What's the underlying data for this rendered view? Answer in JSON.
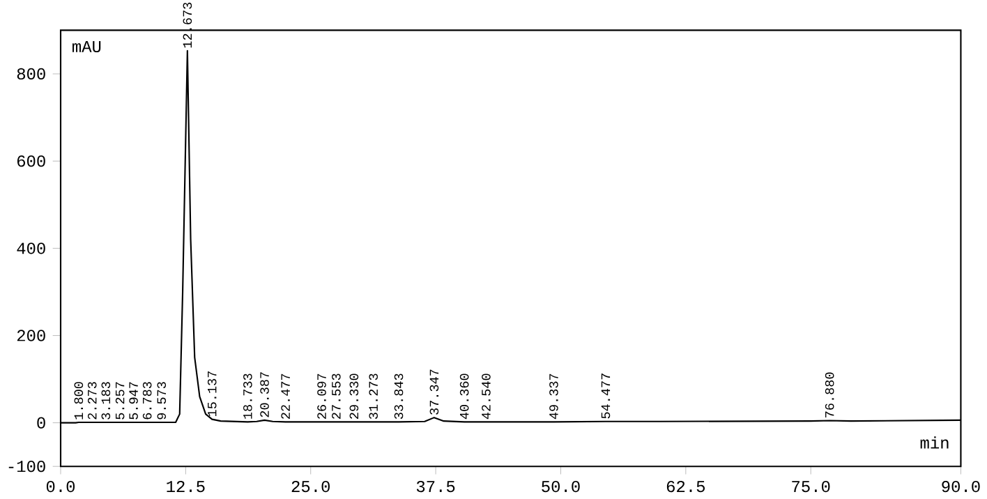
{
  "chart_data": {
    "type": "line",
    "xlabel": "min",
    "ylabel": "mAU",
    "color": "#000000",
    "x": [
      0,
      1.5,
      1.8,
      2.3,
      3.2,
      5.3,
      6.0,
      6.8,
      9.6,
      11.5,
      11.9,
      12.2,
      12.673,
      13.0,
      13.4,
      13.9,
      14.5,
      15.137,
      16.0,
      18.7,
      19.6,
      20.387,
      21.2,
      22.477,
      26.1,
      33.8,
      36.4,
      37.347,
      38.3,
      40.36,
      42.54,
      49.3,
      54.5,
      60.0,
      75.0,
      76.88,
      79.0,
      90.0
    ],
    "values": [
      0,
      0,
      1,
      1,
      1,
      1,
      1,
      1,
      1,
      1,
      20,
      300,
      853,
      420,
      150,
      60,
      20,
      8,
      4,
      2,
      3,
      6,
      3,
      2,
      2,
      2,
      3,
      12,
      4,
      2,
      2,
      2,
      3,
      3,
      4,
      5,
      4,
      6
    ],
    "xlim": [
      0,
      90
    ],
    "ylim": [
      -100,
      900
    ],
    "xticks": [
      {
        "value": 0,
        "label": "0.0"
      },
      12.5,
      {
        "value": 25,
        "label": "25.0"
      },
      37.5,
      {
        "value": 50,
        "label": "50.0"
      },
      62.5,
      {
        "value": 75,
        "label": "75.0"
      },
      {
        "value": 90,
        "label": "90.0"
      }
    ],
    "yticks": [
      -100,
      0,
      200,
      400,
      600,
      800
    ],
    "grid": false,
    "annotations": [
      {
        "text": "1.800",
        "x": 1.8,
        "y": 1
      },
      {
        "text": "2.273",
        "x": 2.3,
        "y": 1
      },
      {
        "text": "3.183",
        "x": 3.2,
        "y": 1
      },
      {
        "text": "5.257",
        "x": 5.3,
        "y": 1
      },
      {
        "text": "5.947",
        "x": 6.0,
        "y": 1
      },
      {
        "text": "6.783",
        "x": 6.8,
        "y": 1
      },
      {
        "text": "9.573",
        "x": 9.6,
        "y": 1
      },
      {
        "text": "12.673",
        "x": 12.673,
        "y": 853
      },
      {
        "text": "15.137",
        "x": 15.137,
        "y": 8
      },
      {
        "text": "18.733",
        "x": 18.7,
        "y": 2
      },
      {
        "text": "20.387",
        "x": 20.387,
        "y": 6
      },
      {
        "text": "22.477",
        "x": 22.477,
        "y": 2
      },
      {
        "text": "26.097",
        "x": 26.1,
        "y": 2
      },
      {
        "text": "27.553",
        "x": 27.55,
        "y": 2
      },
      {
        "text": "29.330",
        "x": 29.33,
        "y": 2
      },
      {
        "text": "31.273",
        "x": 31.27,
        "y": 2
      },
      {
        "text": "33.843",
        "x": 33.8,
        "y": 2
      },
      {
        "text": "37.347",
        "x": 37.347,
        "y": 12
      },
      {
        "text": "40.360",
        "x": 40.36,
        "y": 2
      },
      {
        "text": "42.540",
        "x": 42.54,
        "y": 2
      },
      {
        "text": "49.337",
        "x": 49.3,
        "y": 2
      },
      {
        "text": "54.477",
        "x": 54.5,
        "y": 3
      },
      {
        "text": "76.880",
        "x": 76.88,
        "y": 5
      }
    ]
  }
}
